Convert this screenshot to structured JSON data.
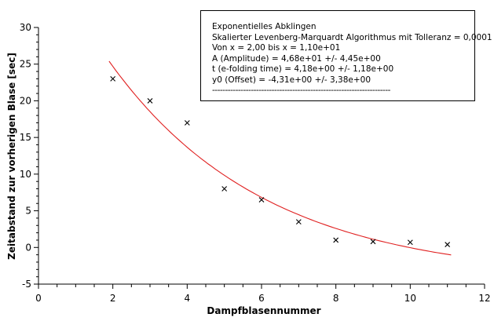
{
  "chart_data": {
    "type": "scatter",
    "xlabel": "Dampfblasennummer",
    "ylabel": "Zeitabstand zur vorherigen Blase [sec]",
    "xlim": [
      0,
      12
    ],
    "ylim": [
      -5,
      30
    ],
    "xticks": [
      0,
      2,
      4,
      6,
      8,
      10,
      12
    ],
    "yticks": [
      -5,
      0,
      5,
      10,
      15,
      20,
      25,
      30
    ],
    "grid": false,
    "points": {
      "marker": "x",
      "color": "#000000",
      "x": [
        2,
        3,
        4,
        5,
        6,
        7,
        8,
        9,
        10,
        11
      ],
      "y": [
        23,
        20,
        17,
        8,
        6.5,
        3.5,
        1,
        0.8,
        0.7,
        0.4
      ]
    },
    "fit": {
      "type": "exponential-decay",
      "color": "#e02020",
      "x_range": [
        1.9,
        11.1
      ],
      "A": 46.8,
      "t": 4.18,
      "y0": -4.31
    },
    "annotation": {
      "position": "top-right",
      "lines": [
        "Exponentielles Abklingen",
        "Skalierter Levenberg-Marquardt Algorithmus mit Tolleranz = 0,0001",
        "Von x = 2,00 bis x = 1,10e+01",
        "A (Amplitude) = 4,68e+01 +/- 4,45e+00",
        "t (e-folding time) = 4,18e+00 +/- 1,18e+00",
        "y0 (Offset) = -4,31e+00 +/- 3,38e+00",
        "---------------------------------------------------------------------"
      ]
    }
  }
}
